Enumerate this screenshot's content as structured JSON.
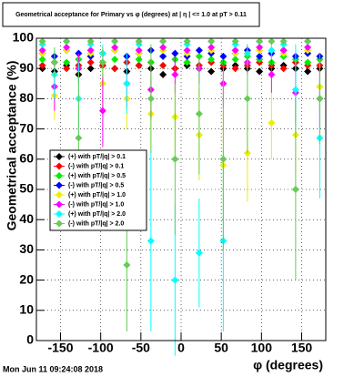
{
  "chart_data": {
    "type": "scatter",
    "title": "Geometrical acceptance for Primary vs φ (degrees) at | η | <= 1.0 at pT > 0.11",
    "x_label": "φ (degrees)",
    "y_label": "Geometrical acceptance (%)",
    "timestamp": "Mon Jun 11 09:24:08 2018",
    "x": [
      -172.5,
      -157.5,
      -142.5,
      -127.5,
      -112.5,
      -97.5,
      -82.5,
      -67.5,
      -52.5,
      -37.5,
      -22.5,
      -7.5,
      7.5,
      22.5,
      37.5,
      52.5,
      67.5,
      82.5,
      97.5,
      112.5,
      127.5,
      142.5,
      157.5,
      172.5
    ],
    "xlim": [
      -180,
      180
    ],
    "ylim": [
      0,
      100
    ],
    "xticks": [
      -150,
      -100,
      -50,
      0,
      50,
      100,
      150
    ],
    "yticks": [
      0,
      10,
      20,
      30,
      40,
      50,
      60,
      70,
      80,
      90,
      100
    ],
    "grid": true,
    "series": [
      {
        "name": "(+) with pT/|q| > 0.1",
        "color": "#000000",
        "values": [
          90,
          89,
          91,
          88,
          90,
          91,
          90,
          89,
          91,
          90,
          88,
          90,
          91,
          90,
          89,
          90,
          91,
          90,
          89,
          90,
          91,
          90,
          89,
          90
        ],
        "errors": [
          1,
          1,
          1,
          1,
          1,
          1,
          1,
          1,
          1,
          1,
          1,
          1,
          1,
          1,
          1,
          1,
          1,
          1,
          1,
          1,
          1,
          1,
          1,
          1
        ]
      },
      {
        "name": "(-) with pT/|q| > 0.1",
        "color": "#ff0000",
        "values": [
          91,
          92,
          90,
          91,
          92,
          91,
          90,
          92,
          91,
          92,
          91,
          90,
          92,
          91,
          92,
          91,
          90,
          91,
          92,
          91,
          90,
          92,
          91,
          91
        ],
        "errors": [
          1,
          1,
          1,
          1,
          1,
          1,
          1,
          1,
          1,
          1,
          1,
          1,
          1,
          1,
          1,
          1,
          1,
          1,
          1,
          1,
          1,
          1,
          1,
          1
        ]
      },
      {
        "name": "(+) with pT/|q| > 0.5",
        "color": "#00ee00",
        "values": [
          93,
          94,
          92,
          93,
          94,
          92,
          93,
          94,
          93,
          92,
          94,
          93,
          92,
          94,
          93,
          92,
          93,
          94,
          93,
          92,
          94,
          93,
          92,
          93
        ],
        "errors": [
          1,
          1,
          1,
          1,
          1,
          1,
          1,
          1,
          1,
          1,
          1,
          1,
          1,
          1,
          1,
          1,
          1,
          1,
          1,
          1,
          1,
          1,
          1,
          1
        ]
      },
      {
        "name": "(-) with pT/|q| > 0.5",
        "color": "#0000ff",
        "values": [
          95,
          94,
          96,
          95,
          94,
          95,
          96,
          94,
          95,
          96,
          94,
          95,
          94,
          96,
          95,
          94,
          95,
          96,
          94,
          95,
          96,
          94,
          95,
          94
        ],
        "errors": [
          1,
          1,
          1,
          1,
          1,
          1,
          1,
          1,
          1,
          1,
          1,
          1,
          1,
          1,
          1,
          1,
          1,
          1,
          1,
          1,
          1,
          1,
          1,
          1
        ]
      },
      {
        "name": "(+) with pT/|q| > 1.0",
        "color": "#eeee00",
        "values": [
          95,
          81,
          96,
          90,
          95,
          85,
          96,
          80,
          95,
          75,
          96,
          74,
          95,
          68,
          96,
          58,
          95,
          62,
          96,
          72,
          95,
          68,
          96,
          84
        ],
        "errors": [
          1,
          8,
          1,
          4,
          1,
          8,
          1,
          10,
          1,
          12,
          1,
          12,
          1,
          15,
          1,
          18,
          1,
          16,
          1,
          12,
          1,
          14,
          1,
          8
        ]
      },
      {
        "name": "(-) with pT/|q| > 1.0",
        "color": "#ff00ff",
        "values": [
          96,
          84,
          97,
          90,
          96,
          76,
          97,
          85,
          96,
          83,
          97,
          88,
          96,
          90,
          97,
          85,
          96,
          92,
          97,
          88,
          96,
          82,
          97,
          80
        ],
        "errors": [
          1,
          8,
          1,
          5,
          1,
          12,
          1,
          8,
          1,
          10,
          1,
          6,
          1,
          5,
          1,
          8,
          1,
          4,
          1,
          6,
          1,
          10,
          1,
          10
        ]
      },
      {
        "name": "(+) with pT/|q| > 2.0",
        "color": "#00ffff",
        "values": [
          98,
          88,
          99,
          80,
          98,
          95,
          99,
          85,
          98,
          33,
          99,
          20,
          98,
          29,
          99,
          33,
          98,
          95,
          99,
          96,
          98,
          83,
          99,
          67
        ],
        "errors": [
          1,
          8,
          1,
          12,
          1,
          3,
          1,
          10,
          1,
          30,
          1,
          25,
          1,
          18,
          1,
          30,
          1,
          3,
          1,
          3,
          1,
          15,
          1,
          20
        ]
      },
      {
        "name": "(-) with pT/|q| > 2.0",
        "color": "#66cc55",
        "values": [
          99,
          92,
          99,
          67,
          99,
          92,
          99,
          25,
          99,
          80,
          99,
          60,
          99,
          75,
          99,
          60,
          99,
          80,
          99,
          99,
          99,
          50,
          99,
          80
        ],
        "errors": [
          1,
          5,
          1,
          22,
          1,
          5,
          1,
          22,
          1,
          18,
          1,
          25,
          1,
          20,
          1,
          30,
          1,
          18,
          1,
          1,
          1,
          30,
          1,
          15
        ]
      }
    ]
  }
}
